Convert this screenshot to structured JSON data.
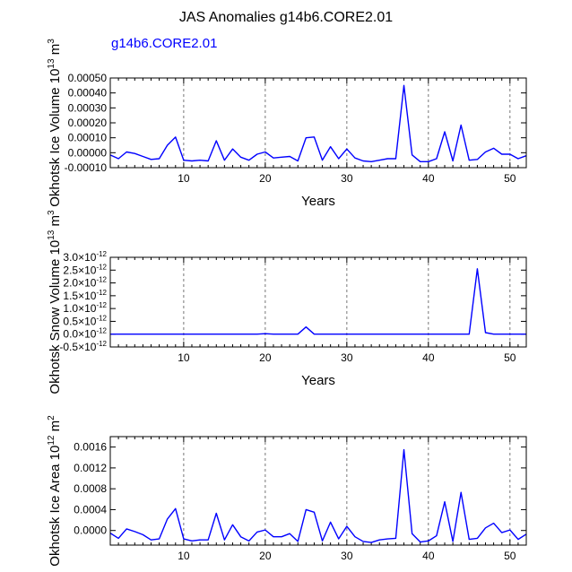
{
  "title": "JAS Anomalies g14b6.CORE2.01",
  "legend_label": "g14b6.CORE2.01",
  "chart_data": [
    {
      "type": "line",
      "ylabel": "Okhotsk Ice Volume 10^13 m^3",
      "ylabel_base": "Okhotsk Ice Volume 10",
      "ylabel_sup1": "13",
      "ylabel_mid": " m",
      "ylabel_sup2": "3",
      "xlabel": "Years",
      "xlim": [
        1,
        52
      ],
      "ylim": [
        -0.0001,
        0.0005
      ],
      "xticks": [
        10,
        20,
        30,
        40,
        50
      ],
      "yticks": [
        -0.0001,
        0.0,
        0.0001,
        0.0002,
        0.0003,
        0.0004,
        0.0005
      ],
      "ytick_labels": [
        "-0.00010",
        "0.00000",
        "0.00010",
        "0.00020",
        "0.00030",
        "0.00040",
        "0.00050"
      ],
      "series": [
        {
          "name": "g14b6.CORE2.01",
          "x": [
            1,
            2,
            3,
            4,
            5,
            6,
            7,
            8,
            9,
            10,
            11,
            12,
            13,
            14,
            15,
            16,
            17,
            18,
            19,
            20,
            21,
            22,
            23,
            24,
            25,
            26,
            27,
            28,
            29,
            30,
            31,
            32,
            33,
            34,
            35,
            36,
            37,
            38,
            39,
            40,
            41,
            42,
            43,
            44,
            45,
            46,
            47,
            48,
            49,
            50,
            51,
            52
          ],
          "values": [
            -1.5e-05,
            -4e-05,
            5e-06,
            -5e-06,
            -2.5e-05,
            -4.5e-05,
            -4e-05,
            5e-05,
            0.000105,
            -5e-05,
            -5.5e-05,
            -5e-05,
            -5.5e-05,
            8e-05,
            -5e-05,
            2.5e-05,
            -3e-05,
            -5e-05,
            -1e-05,
            5e-06,
            -3.5e-05,
            -3e-05,
            -2.5e-05,
            -5.5e-05,
            0.0001,
            0.000105,
            -5e-05,
            4e-05,
            -4e-05,
            2.5e-05,
            -3.5e-05,
            -5.5e-05,
            -6e-05,
            -5e-05,
            -4e-05,
            -4e-05,
            0.00045,
            -1.5e-05,
            -6e-05,
            -6e-05,
            -4e-05,
            0.00014,
            -5.5e-05,
            0.000185,
            -5e-05,
            -4.5e-05,
            5e-06,
            3e-05,
            -1e-05,
            -1e-05,
            -4e-05,
            -2e-05
          ]
        }
      ]
    },
    {
      "type": "line",
      "ylabel": "Okhotsk Snow Volume 10^13 m^3",
      "ylabel_base": "Okhotsk Snow Volume 10",
      "ylabel_sup1": "13",
      "ylabel_mid": " m",
      "ylabel_sup2": "3",
      "xlabel": "Years",
      "xlim": [
        1,
        52
      ],
      "ylim": [
        -5e-13,
        3e-12
      ],
      "xticks": [
        10,
        20,
        30,
        40,
        50
      ],
      "yticks": [
        -5e-13,
        0,
        5e-13,
        1e-12,
        1.5e-12,
        2e-12,
        2.5e-12,
        3e-12
      ],
      "ytick_mantissa": [
        "-0.5",
        "0.0",
        "0.5",
        "1.0",
        "1.5",
        "2.0",
        "2.5",
        "3.0"
      ],
      "ytick_times": "×10",
      "ytick_exp": "-12",
      "series": [
        {
          "name": "g14b6.CORE2.01",
          "x": [
            1,
            2,
            3,
            4,
            5,
            6,
            7,
            8,
            9,
            10,
            11,
            12,
            13,
            14,
            15,
            16,
            17,
            18,
            19,
            20,
            21,
            22,
            23,
            24,
            25,
            26,
            27,
            28,
            29,
            30,
            31,
            32,
            33,
            34,
            35,
            36,
            37,
            38,
            39,
            40,
            41,
            42,
            43,
            44,
            45,
            46,
            47,
            48,
            49,
            50,
            51,
            52
          ],
          "values": [
            0,
            0,
            0,
            0,
            0,
            0,
            0,
            0,
            0,
            0,
            0,
            0,
            0,
            0,
            0,
            0,
            0,
            0,
            0,
            2e-14,
            0,
            0,
            0,
            0,
            2.8e-13,
            0,
            0,
            0,
            0,
            0,
            0,
            0,
            0,
            0,
            0,
            0,
            0,
            0,
            0,
            0,
            0,
            0,
            0,
            0,
            0,
            2.55e-12,
            6e-14,
            0,
            0,
            0,
            0,
            0
          ]
        }
      ]
    },
    {
      "type": "line",
      "ylabel": "Okhotsk Ice Area 10^12 m^2",
      "ylabel_base": "Okhotsk Ice Area 10",
      "ylabel_sup1": "12",
      "ylabel_mid": " m",
      "ylabel_sup2": "2",
      "xlabel": "Years",
      "xlim": [
        1,
        52
      ],
      "ylim": [
        -0.00028,
        0.0018
      ],
      "xticks": [
        10,
        20,
        30,
        40,
        50
      ],
      "yticks": [
        0.0,
        0.0004,
        0.0008,
        0.0012,
        0.0016
      ],
      "ytick_labels": [
        "0.0000",
        "0.0004",
        "0.0008",
        "0.0012",
        "0.0016"
      ],
      "series": [
        {
          "name": "g14b6.CORE2.01",
          "x": [
            1,
            2,
            3,
            4,
            5,
            6,
            7,
            8,
            9,
            10,
            11,
            12,
            13,
            14,
            15,
            16,
            17,
            18,
            19,
            20,
            21,
            22,
            23,
            24,
            25,
            26,
            27,
            28,
            29,
            30,
            31,
            32,
            33,
            34,
            35,
            36,
            37,
            38,
            39,
            40,
            41,
            42,
            43,
            44,
            45,
            46,
            47,
            48,
            49,
            50,
            51,
            52
          ],
          "values": [
            -5e-05,
            -0.00015,
            3e-05,
            -2e-05,
            -8e-05,
            -0.00018,
            -0.00016,
            0.00022,
            0.00042,
            -0.00016,
            -0.0002,
            -0.00018,
            -0.00018,
            0.00033,
            -0.00018,
            0.00011,
            -0.00012,
            -0.0002,
            -3e-05,
            1e-05,
            -0.00012,
            -0.00012,
            -6e-05,
            -0.00021,
            0.0004,
            0.00035,
            -0.0002,
            0.00016,
            -0.00016,
            8e-05,
            -0.00012,
            -0.00021,
            -0.00023,
            -0.00018,
            -0.00016,
            -0.00015,
            0.00155,
            -6e-05,
            -0.00022,
            -0.0002,
            -0.0001,
            0.00055,
            -0.00021,
            0.00073,
            -0.00017,
            -0.00015,
            5e-05,
            0.00014,
            -4e-05,
            1e-05,
            -0.00017,
            -7e-05
          ]
        }
      ]
    }
  ]
}
